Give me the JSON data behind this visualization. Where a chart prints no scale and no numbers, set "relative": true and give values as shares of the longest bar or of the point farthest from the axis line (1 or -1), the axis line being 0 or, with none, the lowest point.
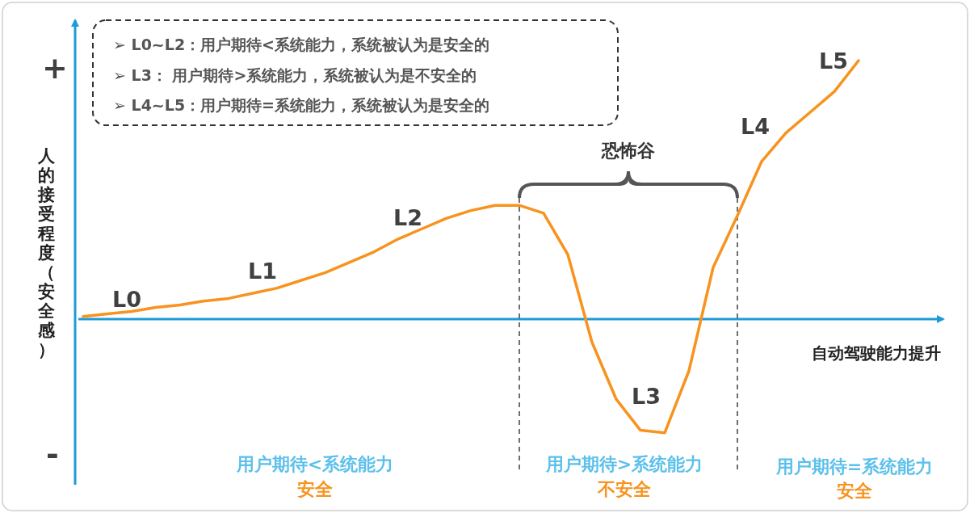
{
  "chart_data": {
    "type": "line",
    "relative": true,
    "xlabel": "自动驾驶能力提升",
    "ylabel": "人的接受程度（安全感）",
    "categories": [
      null,
      null,
      null,
      null,
      null,
      null,
      null,
      null,
      null,
      null,
      null,
      null,
      null,
      null,
      null,
      null,
      null,
      null,
      null,
      null,
      null,
      null,
      null,
      null,
      null,
      null,
      null,
      null,
      null,
      null,
      null,
      null,
      null
    ],
    "series": [
      {
        "color": "#f7931e",
        "values": [
          0.01,
          0.02,
          0.03,
          0.045,
          0.055,
          0.07,
          0.08,
          0.1,
          0.12,
          0.15,
          0.18,
          0.22,
          0.26,
          0.31,
          0.35,
          0.39,
          0.42,
          0.44,
          0.44,
          0.41,
          0.25,
          -0.09,
          -0.31,
          -0.43,
          -0.44,
          -0.2,
          0.2,
          0.4,
          0.61,
          0.72,
          0.8,
          0.88,
          1.0
        ]
      }
    ],
    "ref_lines": [
      {
        "axis": "y",
        "value": 0,
        "color": "#1e9bd7",
        "line_style": "solid"
      }
    ],
    "annotations": [
      "+",
      "-",
      "➢  L0~L2：用户期待<系统能力，系统被认为是安全的",
      "➢  L3： 用户期待>系统能力，系统被认为是不安全的",
      "➢  L4~L5：用户期待=系统能力，系统被认为是安全的",
      "恐怖谷",
      "L0",
      "L1",
      "L2",
      "L3",
      "L4",
      "L5",
      "用户期待<系统能力",
      "安全",
      "用户期待>系统能力",
      "不安全",
      "用户期待=系统能力",
      "安全"
    ],
    "marker": "none",
    "line_style": "solid"
  }
}
